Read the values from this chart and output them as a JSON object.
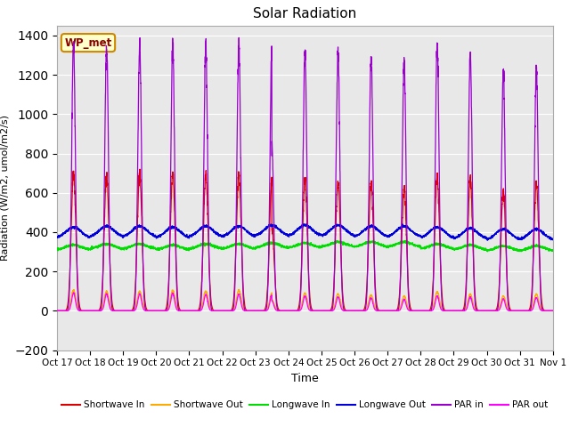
{
  "title": "Solar Radiation",
  "xlabel": "Time",
  "ylabel": "Radiation (W/m2, umol/m2/s)",
  "ylim": [
    -200,
    1450
  ],
  "yticks": [
    -200,
    0,
    200,
    400,
    600,
    800,
    1000,
    1200,
    1400
  ],
  "x_labels": [
    "Oct 17",
    "Oct 18",
    "Oct 19",
    "Oct 20",
    "Oct 21",
    "Oct 22",
    "Oct 23",
    "Oct 24",
    "Oct 25",
    "Oct 26",
    "Oct 27",
    "Oct 28",
    "Oct 29",
    "Oct 30",
    "Oct 31",
    "Nov 1"
  ],
  "annotation_label": "WP_met",
  "plot_bg_color": "#e8e8e8",
  "fig_bg_color": "#ffffff",
  "grid_color": "#ffffff",
  "series": {
    "shortwave_in": {
      "color": "#dd0000",
      "label": "Shortwave In"
    },
    "shortwave_out": {
      "color": "#ffaa00",
      "label": "Shortwave Out"
    },
    "longwave_in": {
      "color": "#00dd00",
      "label": "Longwave In"
    },
    "longwave_out": {
      "color": "#0000dd",
      "label": "Longwave Out"
    },
    "par_in": {
      "color": "#9900cc",
      "label": "PAR in"
    },
    "par_out": {
      "color": "#ff00ff",
      "label": "PAR out"
    }
  },
  "n_days": 15,
  "points_per_day": 288,
  "sw_in_peaks": [
    700,
    690,
    695,
    700,
    690,
    695,
    680,
    660,
    650,
    650,
    625,
    680,
    670,
    610,
    650
  ],
  "sw_out_peaks": [
    105,
    100,
    100,
    105,
    100,
    105,
    90,
    90,
    85,
    80,
    75,
    95,
    85,
    75,
    85
  ],
  "par_in_peaks": [
    1360,
    1350,
    1350,
    1360,
    1345,
    1350,
    1350,
    1315,
    1310,
    1290,
    1265,
    1350,
    1310,
    1210,
    1240
  ],
  "par_out_peaks": [
    90,
    85,
    85,
    90,
    82,
    85,
    82,
    75,
    70,
    65,
    58,
    75,
    70,
    60,
    68
  ],
  "lw_in_base": [
    310,
    315,
    315,
    310,
    315,
    315,
    320,
    320,
    325,
    325,
    325,
    315,
    310,
    305,
    305
  ],
  "lw_out_base": [
    370,
    375,
    375,
    370,
    375,
    375,
    380,
    380,
    380,
    375,
    375,
    370,
    365,
    360,
    360
  ],
  "cloud_day_idx": 6,
  "cloud_factor": 0.62
}
